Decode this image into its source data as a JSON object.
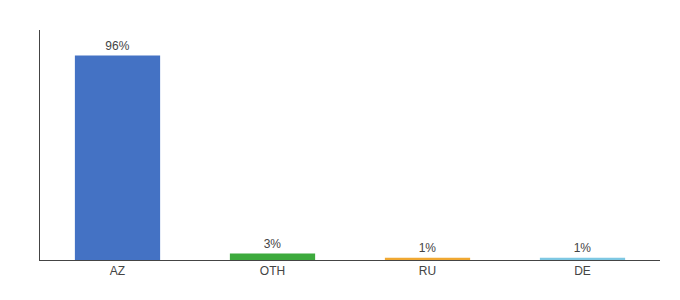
{
  "chart_data": {
    "type": "bar",
    "categories": [
      "AZ",
      "OTH",
      "RU",
      "DE"
    ],
    "values": [
      96,
      3,
      1,
      1
    ],
    "value_labels": [
      "96%",
      "3%",
      "1%",
      "1%"
    ],
    "data_labels": true,
    "colors": [
      "#4472c4",
      "#3daa3d",
      "#f0a832",
      "#7ec8e3"
    ],
    "ylim": [
      0,
      108
    ],
    "grid": false,
    "tick_labels": "x"
  }
}
